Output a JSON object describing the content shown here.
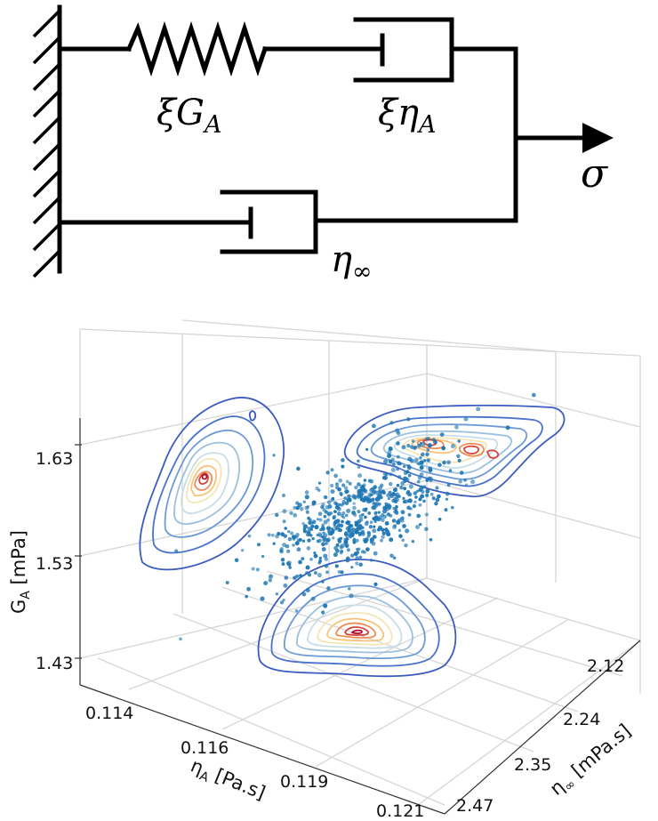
{
  "circuit": {
    "spring_label": "ξG",
    "spring_label_sub": "A",
    "dashpot_a_label": "ξη",
    "dashpot_a_label_sub": "A",
    "dashpot_inf_label": "η",
    "dashpot_inf_label_sub": "∞",
    "stress_label": "σ"
  },
  "chart_data": {
    "type": "scatter",
    "dimensions": "3d",
    "description_elements": [
      "scatter points",
      "density contours projected on three walls"
    ],
    "axes": {
      "x": {
        "label": "η",
        "label_sub": "A",
        "label_unit": " [Pa.s]",
        "ticks": [
          "0.114",
          "0.116",
          "0.119",
          "0.121"
        ]
      },
      "y": {
        "label": "η",
        "label_sub": "∞",
        "label_unit": " [mPa.s]",
        "ticks": [
          "2.12",
          "2.24",
          "2.35",
          "2.47"
        ]
      },
      "z": {
        "label": "G",
        "label_sub": "A",
        "label_unit": " [mPa]",
        "ticks": [
          "1.63",
          "1.53",
          "1.43"
        ]
      }
    },
    "grid": true,
    "colors": {
      "scatter": "#1f77b4",
      "contour_low": "#3b4cc0",
      "contour_high": "#b40426"
    }
  }
}
